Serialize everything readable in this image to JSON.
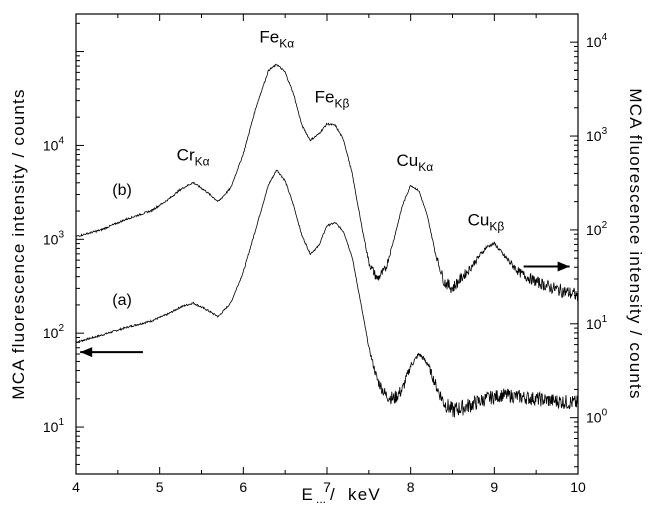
{
  "chart_data": {
    "type": "line",
    "xlabel": "E",
    "xlabel_sub": "...",
    "xlabel_unit": "keV",
    "ylabel_left": "MCA fluorescence intensity  /  counts",
    "ylabel_right": "MCA fluorescence intensity  /  counts",
    "xlim": [
      4,
      10
    ],
    "x_ticks": [
      "4",
      "5",
      "6",
      "7",
      "8",
      "9",
      "10"
    ],
    "ylim_left_log10": [
      0.5,
      5.4
    ],
    "ylim_right_log10": [
      -0.6,
      4.3
    ],
    "y_scale": "log",
    "left_ticks": [
      {
        "base": "10",
        "exp": "1",
        "v": 1
      },
      {
        "base": "10",
        "exp": "2",
        "v": 2
      },
      {
        "base": "10",
        "exp": "3",
        "v": 3
      },
      {
        "base": "10",
        "exp": "4",
        "v": 4
      }
    ],
    "right_ticks": [
      {
        "base": "10",
        "exp": "0",
        "v": 0
      },
      {
        "base": "10",
        "exp": "1",
        "v": 1
      },
      {
        "base": "10",
        "exp": "2",
        "v": 2
      },
      {
        "base": "10",
        "exp": "3",
        "v": 3
      },
      {
        "base": "10",
        "exp": "4",
        "v": 4
      }
    ],
    "peak_labels": [
      {
        "main": "Cr",
        "sub": "Kα",
        "x": 5.4
      },
      {
        "main": "Fe",
        "sub": "Kα",
        "x": 6.4
      },
      {
        "main": "Fe",
        "sub": "Kβ",
        "x": 7.06
      },
      {
        "main": "Cu",
        "sub": "Kα",
        "x": 8.05
      },
      {
        "main": "Cu",
        "sub": "Kβ",
        "x": 8.9
      }
    ],
    "series": [
      {
        "name": "(a)",
        "axis": "left",
        "x": [
          4.0,
          4.3,
          4.6,
          4.9,
          5.1,
          5.25,
          5.4,
          5.55,
          5.7,
          5.85,
          6.0,
          6.15,
          6.3,
          6.4,
          6.5,
          6.6,
          6.7,
          6.8,
          6.9,
          7.0,
          7.1,
          7.2,
          7.3,
          7.4,
          7.5,
          7.6,
          7.7,
          7.8,
          7.9,
          8.0,
          8.1,
          8.2,
          8.3,
          8.4,
          8.5,
          8.7,
          8.9,
          9.1,
          9.3,
          9.5,
          9.7,
          10.0
        ],
        "y": [
          80,
          95,
          115,
          135,
          160,
          190,
          210,
          180,
          150,
          210,
          450,
          1300,
          3800,
          5500,
          4200,
          2300,
          1100,
          700,
          850,
          1400,
          1500,
          1200,
          650,
          220,
          70,
          32,
          22,
          20,
          25,
          45,
          60,
          48,
          28,
          18,
          15,
          17,
          20,
          22,
          21,
          20,
          19,
          18
        ]
      },
      {
        "name": "(b)",
        "axis": "right",
        "x": [
          4.0,
          4.3,
          4.6,
          4.9,
          5.1,
          5.25,
          5.4,
          5.55,
          5.7,
          5.85,
          6.0,
          6.15,
          6.3,
          6.4,
          6.5,
          6.6,
          6.7,
          6.8,
          6.9,
          7.0,
          7.1,
          7.2,
          7.3,
          7.4,
          7.5,
          7.6,
          7.7,
          7.8,
          7.9,
          8.0,
          8.1,
          8.2,
          8.3,
          8.4,
          8.5,
          8.7,
          8.9,
          9.0,
          9.1,
          9.3,
          9.5,
          9.7,
          10.0
        ],
        "y": [
          85,
          100,
          130,
          160,
          210,
          270,
          320,
          260,
          200,
          280,
          650,
          2000,
          5000,
          5800,
          4800,
          2800,
          1300,
          900,
          1050,
          1350,
          1300,
          900,
          400,
          130,
          45,
          30,
          38,
          80,
          180,
          300,
          260,
          140,
          55,
          28,
          24,
          38,
          65,
          72,
          55,
          35,
          28,
          24,
          20
        ]
      }
    ],
    "arrows": [
      {
        "series": "(a)",
        "points_to": "left"
      },
      {
        "series": "(b)",
        "points_to": "right"
      }
    ]
  }
}
